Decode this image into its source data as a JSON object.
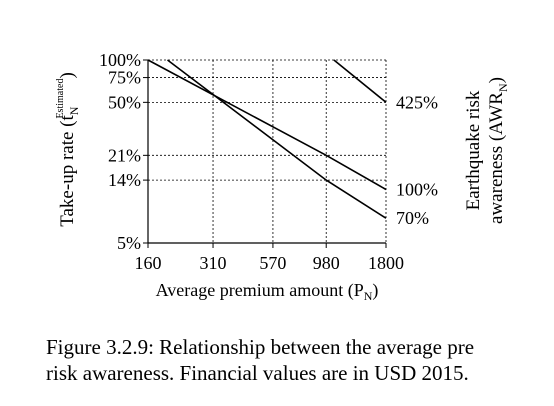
{
  "chart_data": {
    "type": "line",
    "xlabel_main": "Average premium amount (P",
    "xlabel_sub": "N",
    "xlabel_end": ")",
    "ylabel_main": "Take-up rate (t",
    "ylabel_sub": "N",
    "ylabel_sup": "Estimated",
    "ylabel_end": ")",
    "right_label_line1": "Earthquake risk",
    "right_label_line2_main": "awareness (AWR",
    "right_label_line2_sub": "N",
    "right_label_line2_end": ")",
    "x_scale": "log",
    "y_scale": "log",
    "x_ticks": [
      160,
      310,
      570,
      980,
      1800
    ],
    "x_tick_labels": [
      "160",
      "310",
      "570",
      "980",
      "1800"
    ],
    "y_ticks": [
      0.05,
      0.14,
      0.21,
      0.5,
      0.75,
      1.0
    ],
    "y_tick_labels": [
      "5%",
      "14%",
      "21%",
      "50%",
      "75%",
      "100%"
    ],
    "xlim": [
      160,
      1800
    ],
    "ylim": [
      0.05,
      1.0
    ],
    "grid": "dashed lines at tick values",
    "series": [
      {
        "name": "425%",
        "x": [
          1060,
          1800
        ],
        "y": [
          1.0,
          0.5
        ]
      },
      {
        "name": "100%",
        "x": [
          160,
          980,
          1800
        ],
        "y": [
          1.0,
          0.21,
          0.12
        ]
      },
      {
        "name": "70%",
        "x": [
          195,
          980,
          1800
        ],
        "y": [
          1.0,
          0.14,
          0.075
        ]
      }
    ]
  },
  "caption_text": "Figure 3.2.9: Relationship between the average pre\nrisk awareness. Financial values are in USD 2015."
}
